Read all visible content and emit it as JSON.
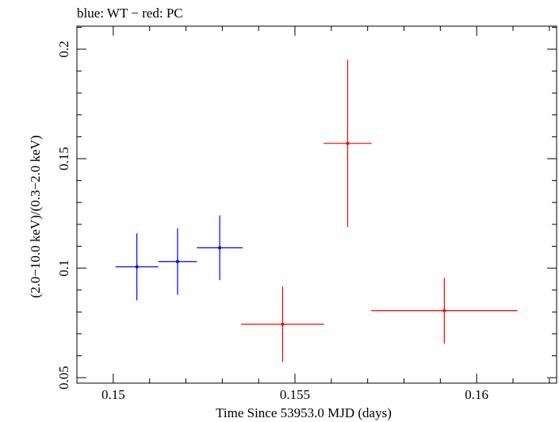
{
  "chart_data": {
    "type": "scatter",
    "title": "blue: WT − red: PC",
    "xlabel": "Time Since 53953.0 MJD (days)",
    "ylabel": "(2.0−10.0 keV)/(0.3−2.0 keV)",
    "xlim": [
      0.149,
      0.1622
    ],
    "ylim": [
      0.0475,
      0.2105
    ],
    "xticks": [
      0.15,
      0.155,
      0.16
    ],
    "xtick_labels": [
      "0.15",
      "0.155",
      "0.16"
    ],
    "yticks": [
      0.05,
      0.1,
      0.15,
      0.2
    ],
    "ytick_labels": [
      "0.05",
      "0.1",
      "0.15",
      "0.2"
    ],
    "grid": false,
    "series": [
      {
        "color": "#0000ff",
        "points": [
          {
            "x": 0.15065,
            "y": 0.1006,
            "xerr": 0.00059,
            "yerr": 0.0153
          },
          {
            "x": 0.15177,
            "y": 0.103,
            "xerr": 0.00053,
            "yerr": 0.0152
          },
          {
            "x": 0.15293,
            "y": 0.1093,
            "xerr": 0.00063,
            "yerr": 0.0148
          }
        ]
      },
      {
        "color": "#ff0000",
        "points": [
          {
            "x": 0.15466,
            "y": 0.0744,
            "xerr": 0.00114,
            "yerr": 0.0173
          },
          {
            "x": 0.15645,
            "y": 0.157,
            "xerr": 0.00066,
            "yerr": 0.0382
          },
          {
            "x": 0.15911,
            "y": 0.0806,
            "xerr": 0.00201,
            "yerr": 0.015
          }
        ]
      }
    ]
  }
}
